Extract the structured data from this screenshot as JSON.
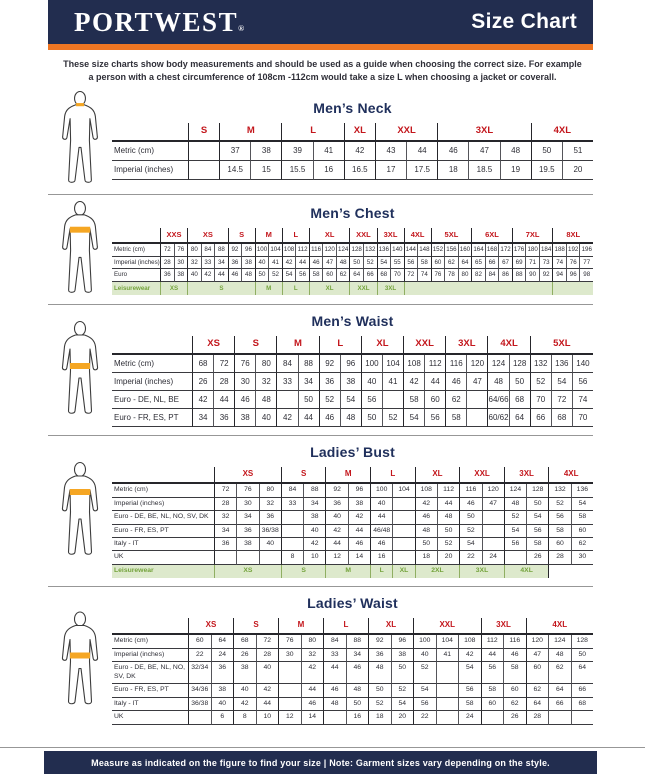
{
  "header": {
    "logo": "PORTWEST",
    "logo_reg": "®",
    "title": "Size Chart"
  },
  "intro": {
    "line1": "These size charts show body measurements and should be used as a guide when choosing the correct size. For example",
    "line2": "a person with a chest circumference of 108cm -112cm would take a size L when choosing a jacket or coverall."
  },
  "footer": {
    "text": "Measure as indicated on the figure to find your size  |  Note: Garment sizes vary depending on the style."
  },
  "colors": {
    "navy": "#222d4f",
    "orange": "#ee7623",
    "size_red": "#c3161c",
    "leisure_green_text": "#74a33c",
    "leisure_green_bg": "#dde9cc",
    "highlight_band": "#f5a623"
  },
  "sections": [
    {
      "id": "mens-neck",
      "title": "Men’s Neck",
      "figure": "neck-highlight-figure",
      "groups": [
        {
          "label": "S",
          "span": 1
        },
        {
          "label": "M",
          "span": 2
        },
        {
          "label": "L",
          "span": 2
        },
        {
          "label": "XL",
          "span": 1
        },
        {
          "label": "XXL",
          "span": 2
        },
        {
          "label": "3XL",
          "span": 3
        },
        {
          "label": "4XL",
          "span": 2
        }
      ],
      "rows": [
        {
          "label": "Metric  (cm)",
          "cells": [
            "",
            "37",
            "38",
            "39",
            "41",
            "42",
            "43",
            "44",
            "46",
            "47",
            "48",
            "50",
            "51"
          ]
        },
        {
          "label": "Imperial (inches)",
          "cells": [
            "",
            "14.5",
            "15",
            "15.5",
            "16",
            "16.5",
            "17",
            "17.5",
            "18",
            "18.5",
            "19",
            "19.5",
            "20"
          ]
        }
      ],
      "leisure": null
    },
    {
      "id": "mens-chest",
      "title": "Men’s Chest",
      "figure": "chest-highlight-figure",
      "groups": [
        {
          "label": "XXS",
          "span": 2
        },
        {
          "label": "XS",
          "span": 3
        },
        {
          "label": "S",
          "span": 2
        },
        {
          "label": "M",
          "span": 2
        },
        {
          "label": "L",
          "span": 2
        },
        {
          "label": "XL",
          "span": 3
        },
        {
          "label": "XXL",
          "span": 2
        },
        {
          "label": "3XL",
          "span": 2
        },
        {
          "label": "4XL",
          "span": 2
        },
        {
          "label": "5XL",
          "span": 3
        },
        {
          "label": "6XL",
          "span": 3
        },
        {
          "label": "7XL",
          "span": 3
        },
        {
          "label": "8XL",
          "span": 3
        }
      ],
      "rows": [
        {
          "label": "Metric  (cm)",
          "cells": [
            "72",
            "76",
            "80",
            "84",
            "88",
            "92",
            "96",
            "100",
            "104",
            "108",
            "112",
            "116",
            "120",
            "124",
            "128",
            "132",
            "136",
            "140",
            "144",
            "148",
            "152",
            "156",
            "160",
            "164",
            "168",
            "172",
            "176",
            "180",
            "184",
            "188",
            "192",
            "196"
          ]
        },
        {
          "label": "Imperial (inches)",
          "cells": [
            "28",
            "30",
            "32",
            "33",
            "34",
            "36",
            "38",
            "40",
            "41",
            "42",
            "44",
            "46",
            "47",
            "48",
            "50",
            "52",
            "54",
            "55",
            "56",
            "58",
            "60",
            "62",
            "64",
            "65",
            "66",
            "67",
            "69",
            "71",
            "73",
            "74",
            "76",
            "77"
          ]
        },
        {
          "label": "Euro",
          "cells": [
            "36",
            "38",
            "40",
            "42",
            "44",
            "46",
            "48",
            "50",
            "52",
            "54",
            "56",
            "58",
            "60",
            "62",
            "64",
            "66",
            "68",
            "70",
            "72",
            "74",
            "76",
            "78",
            "80",
            "82",
            "84",
            "86",
            "88",
            "90",
            "92",
            "94",
            "96",
            "98"
          ]
        }
      ],
      "leisure": {
        "label": "Leisurewear",
        "cells": [
          {
            "label": "XS",
            "span": 2
          },
          {
            "label": "S",
            "span": 5
          },
          {
            "label": "M",
            "span": 2
          },
          {
            "label": "L",
            "span": 2
          },
          {
            "label": "XL",
            "span": 3
          },
          {
            "label": "XXL",
            "span": 2
          },
          {
            "label": "3XL",
            "span": 2
          },
          {
            "label": "",
            "span": 11
          },
          {
            "label": "",
            "span": 3
          }
        ]
      }
    },
    {
      "id": "mens-waist",
      "title": "Men’s Waist",
      "figure": "waist-highlight-figure",
      "groups": [
        {
          "label": "XS",
          "span": 2
        },
        {
          "label": "S",
          "span": 2
        },
        {
          "label": "M",
          "span": 2
        },
        {
          "label": "L",
          "span": 2
        },
        {
          "label": "XL",
          "span": 2
        },
        {
          "label": "XXL",
          "span": 2
        },
        {
          "label": "3XL",
          "span": 2
        },
        {
          "label": "4XL",
          "span": 2
        },
        {
          "label": "5XL",
          "span": 3
        }
      ],
      "rows": [
        {
          "label": "Metric  (cm)",
          "cells": [
            "68",
            "72",
            "76",
            "80",
            "84",
            "88",
            "92",
            "96",
            "100",
            "104",
            "108",
            "112",
            "116",
            "120",
            "124",
            "128",
            "132",
            "136",
            "140"
          ]
        },
        {
          "label": "Imperial (inches)",
          "cells": [
            "26",
            "28",
            "30",
            "32",
            "33",
            "34",
            "36",
            "38",
            "40",
            "41",
            "42",
            "44",
            "46",
            "47",
            "48",
            "50",
            "52",
            "54",
            "56"
          ]
        },
        {
          "label": "Euro - DE, NL, BE",
          "cells": [
            "42",
            "44",
            "46",
            "48",
            "",
            "50",
            "52",
            "54",
            "56",
            "",
            "58",
            "60",
            "62",
            "",
            "64/66",
            "68",
            "70",
            "72",
            "74"
          ]
        },
        {
          "label": "Euro - FR, ES, PT",
          "cells": [
            "34",
            "36",
            "38",
            "40",
            "42",
            "44",
            "46",
            "48",
            "50",
            "52",
            "54",
            "56",
            "58",
            "",
            "60/62",
            "64",
            "66",
            "68",
            "70"
          ]
        }
      ],
      "leisure": null
    },
    {
      "id": "ladies-bust",
      "title": "Ladies’ Bust",
      "figure": "bust-highlight-figure",
      "groups": [
        {
          "label": "XS",
          "span": 3
        },
        {
          "label": "S",
          "span": 2
        },
        {
          "label": "M",
          "span": 2
        },
        {
          "label": "L",
          "span": 2
        },
        {
          "label": "XL",
          "span": 2
        },
        {
          "label": "XXL",
          "span": 2
        },
        {
          "label": "3XL",
          "span": 2
        },
        {
          "label": "4XL",
          "span": 2
        }
      ],
      "rows": [
        {
          "label": "Metric  (cm)",
          "cells": [
            "72",
            "76",
            "80",
            "84",
            "88",
            "92",
            "96",
            "100",
            "104",
            "108",
            "112",
            "116",
            "120",
            "124",
            "128",
            "132",
            "136"
          ]
        },
        {
          "label": "Imperial (inches)",
          "cells": [
            "28",
            "30",
            "32",
            "33",
            "34",
            "36",
            "38",
            "40",
            "",
            "42",
            "44",
            "46",
            "47",
            "48",
            "50",
            "52",
            "54"
          ]
        },
        {
          "label": "Euro -  DE, BE, NL, NO, SV, DK",
          "cells": [
            "32",
            "34",
            "36",
            "",
            "38",
            "40",
            "42",
            "44",
            "",
            "46",
            "48",
            "50",
            "",
            "52",
            "54",
            "56",
            "58"
          ]
        },
        {
          "label": "Euro - FR, ES, PT",
          "cells": [
            "34",
            "36",
            "36/38",
            "",
            "40",
            "42",
            "44",
            "46/48",
            "",
            "48",
            "50",
            "52",
            "",
            "54",
            "56",
            "58",
            "60"
          ]
        },
        {
          "label": "Italy - IT",
          "cells": [
            "36",
            "38",
            "40",
            "",
            "42",
            "44",
            "46",
            "46",
            "",
            "50",
            "52",
            "54",
            "",
            "56",
            "58",
            "60",
            "62"
          ]
        },
        {
          "label": "UK",
          "cells": [
            "",
            "",
            "",
            "8",
            "10",
            "12",
            "14",
            "16",
            "",
            "18",
            "20",
            "22",
            "24",
            "",
            "26",
            "28",
            "30"
          ]
        }
      ],
      "leisure": {
        "label": "Leisurewear",
        "cells": [
          {
            "label": "XS",
            "span": 3
          },
          {
            "label": "S",
            "span": 2
          },
          {
            "label": "M",
            "span": 2
          },
          {
            "label": "L",
            "span": 1
          },
          {
            "label": "XL",
            "span": 1
          },
          {
            "label": "2XL",
            "span": 2
          },
          {
            "label": "3XL",
            "span": 2
          },
          {
            "label": "4XL",
            "span": 2
          },
          {
            "label": "",
            "span": 2,
            "empty": true
          }
        ]
      }
    },
    {
      "id": "ladies-waist",
      "title": "Ladies’ Waist",
      "figure": "ladies-waist-highlight-figure",
      "groups": [
        {
          "label": "XS",
          "span": 2
        },
        {
          "label": "S",
          "span": 2
        },
        {
          "label": "M",
          "span": 2
        },
        {
          "label": "L",
          "span": 2
        },
        {
          "label": "XL",
          "span": 2
        },
        {
          "label": "XXL",
          "span": 3
        },
        {
          "label": "3XL",
          "span": 2
        },
        {
          "label": "4XL",
          "span": 3
        }
      ],
      "rows": [
        {
          "label": "Metric  (cm)",
          "cells": [
            "60",
            "64",
            "68",
            "72",
            "76",
            "80",
            "84",
            "88",
            "92",
            "96",
            "100",
            "104",
            "108",
            "112",
            "116",
            "120",
            "124",
            "128"
          ]
        },
        {
          "label": "Imperial (inches)",
          "cells": [
            "22",
            "24",
            "26",
            "28",
            "30",
            "32",
            "33",
            "34",
            "36",
            "38",
            "40",
            "41",
            "42",
            "44",
            "46",
            "47",
            "48",
            "50"
          ]
        },
        {
          "label": "Euro - DE, BE, NL, NO, SV, DK",
          "cells": [
            "32/34",
            "36",
            "38",
            "40",
            "",
            "42",
            "44",
            "46",
            "48",
            "50",
            "52",
            "",
            "54",
            "56",
            "58",
            "60",
            "62",
            "64"
          ]
        },
        {
          "label": "Euro - FR, ES, PT",
          "cells": [
            "34/36",
            "38",
            "40",
            "42",
            "",
            "44",
            "46",
            "48",
            "50",
            "52",
            "54",
            "",
            "56",
            "58",
            "60",
            "62",
            "64",
            "66"
          ]
        },
        {
          "label": "Italy - IT",
          "cells": [
            "36/38",
            "40",
            "42",
            "44",
            "",
            "46",
            "48",
            "50",
            "52",
            "54",
            "56",
            "",
            "58",
            "60",
            "62",
            "64",
            "66",
            "68"
          ]
        },
        {
          "label": "UK",
          "cells": [
            "",
            "6",
            "8",
            "10",
            "12",
            "14",
            "",
            "16",
            "18",
            "20",
            "22",
            "",
            "24",
            "",
            "26",
            "28",
            "",
            ""
          ]
        }
      ],
      "leisure": null
    }
  ]
}
